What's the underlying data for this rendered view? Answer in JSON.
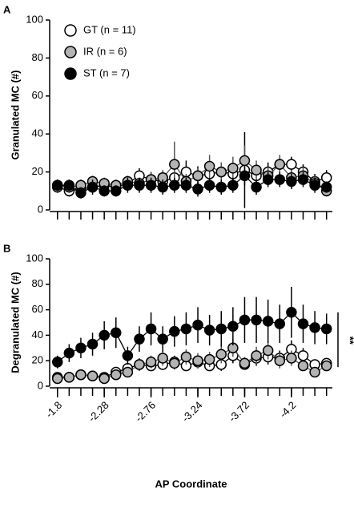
{
  "chart_data": [
    {
      "type": "line",
      "panel": "A",
      "ylabel": "Granulated MC (#)",
      "ylim": [
        0,
        100
      ],
      "yticks": [
        0,
        20,
        40,
        60,
        80,
        100
      ],
      "xlim": [
        -1.72,
        -4.62
      ],
      "x": [
        -1.8,
        -1.92,
        -2.04,
        -2.16,
        -2.28,
        -2.4,
        -2.52,
        -2.64,
        -2.76,
        -2.88,
        -3.0,
        -3.12,
        -3.24,
        -3.36,
        -3.48,
        -3.6,
        -3.72,
        -3.84,
        -3.96,
        -4.08,
        -4.2,
        -4.32,
        -4.44,
        -4.56
      ],
      "legend": "upper left",
      "series": [
        {
          "name": "GT (n = 11)",
          "color": "#ffffff",
          "values": [
            12,
            10,
            11,
            12,
            13,
            12,
            14,
            18,
            16,
            15,
            17,
            20,
            18,
            19,
            20,
            19,
            21,
            18,
            20,
            24,
            24,
            20,
            15,
            17
          ],
          "errors": [
            3,
            3,
            3,
            3,
            3,
            3,
            3,
            4,
            4,
            4,
            4,
            6,
            5,
            5,
            5,
            6,
            20,
            5,
            5,
            4,
            4,
            4,
            4,
            4
          ]
        },
        {
          "name": "IR (n = 6)",
          "color": "#b3b3b3",
          "values": [
            13,
            12,
            13,
            15,
            14,
            13,
            15,
            14,
            16,
            17,
            24,
            15,
            18,
            23,
            20,
            22,
            26,
            21,
            18,
            24,
            17,
            18,
            14,
            10
          ],
          "errors": [
            3,
            3,
            3,
            3,
            3,
            3,
            3,
            3,
            4,
            4,
            12,
            4,
            4,
            6,
            5,
            6,
            8,
            5,
            4,
            5,
            4,
            4,
            4,
            3
          ]
        },
        {
          "name": "ST (n = 7)",
          "color": "#000000",
          "values": [
            13,
            13,
            9,
            12,
            10,
            10,
            13,
            13,
            13,
            12,
            13,
            13,
            11,
            13,
            12,
            13,
            18,
            12,
            16,
            16,
            15,
            16,
            13,
            12
          ],
          "errors": [
            3,
            3,
            3,
            4,
            3,
            3,
            4,
            4,
            4,
            4,
            4,
            4,
            4,
            4,
            4,
            4,
            5,
            4,
            4,
            4,
            4,
            4,
            4,
            3
          ]
        }
      ]
    },
    {
      "type": "line",
      "panel": "B",
      "ylabel": "Degranulated MC (#)",
      "xlabel": "AP Coordinate",
      "ylim": [
        0,
        100
      ],
      "yticks": [
        0,
        20,
        40,
        60,
        80,
        100
      ],
      "xlim": [
        -1.72,
        -4.62
      ],
      "xticks": [
        -1.8,
        -2.28,
        -2.76,
        -3.24,
        -3.72,
        -4.2
      ],
      "x": [
        -1.8,
        -1.92,
        -2.04,
        -2.16,
        -2.28,
        -2.4,
        -2.52,
        -2.64,
        -2.76,
        -2.88,
        -3.0,
        -3.12,
        -3.24,
        -3.36,
        -3.48,
        -3.6,
        -3.72,
        -3.84,
        -3.96,
        -4.08,
        -4.2,
        -4.32,
        -4.44,
        -4.56
      ],
      "annotation": "**",
      "series": [
        {
          "color": "#ffffff",
          "values": [
            7,
            7,
            9,
            8,
            7,
            11,
            14,
            17,
            16,
            17,
            19,
            16,
            19,
            16,
            17,
            24,
            17,
            22,
            23,
            22,
            29,
            24,
            17,
            18
          ],
          "errors": [
            2,
            2,
            2,
            2,
            2,
            3,
            3,
            5,
            4,
            4,
            5,
            4,
            5,
            4,
            5,
            6,
            4,
            6,
            6,
            6,
            7,
            6,
            4,
            3
          ]
        },
        {
          "color": "#b3b3b3",
          "values": [
            6,
            7,
            9,
            8,
            6,
            9,
            11,
            17,
            19,
            22,
            18,
            23,
            20,
            21,
            25,
            30,
            18,
            24,
            28,
            20,
            22,
            16,
            11,
            16
          ],
          "errors": [
            2,
            2,
            2,
            2,
            2,
            3,
            3,
            5,
            5,
            6,
            5,
            6,
            6,
            6,
            7,
            7,
            5,
            7,
            7,
            6,
            6,
            4,
            3,
            4
          ]
        },
        {
          "color": "#000000",
          "values": [
            19,
            26,
            30,
            33,
            40,
            42,
            24,
            37,
            45,
            37,
            43,
            45,
            48,
            44,
            45,
            47,
            52,
            52,
            51,
            49,
            58,
            49,
            46,
            45
          ],
          "errors": [
            5,
            7,
            8,
            9,
            11,
            12,
            7,
            10,
            13,
            10,
            12,
            13,
            14,
            12,
            14,
            15,
            18,
            18,
            17,
            15,
            20,
            15,
            13,
            12
          ]
        }
      ]
    }
  ]
}
